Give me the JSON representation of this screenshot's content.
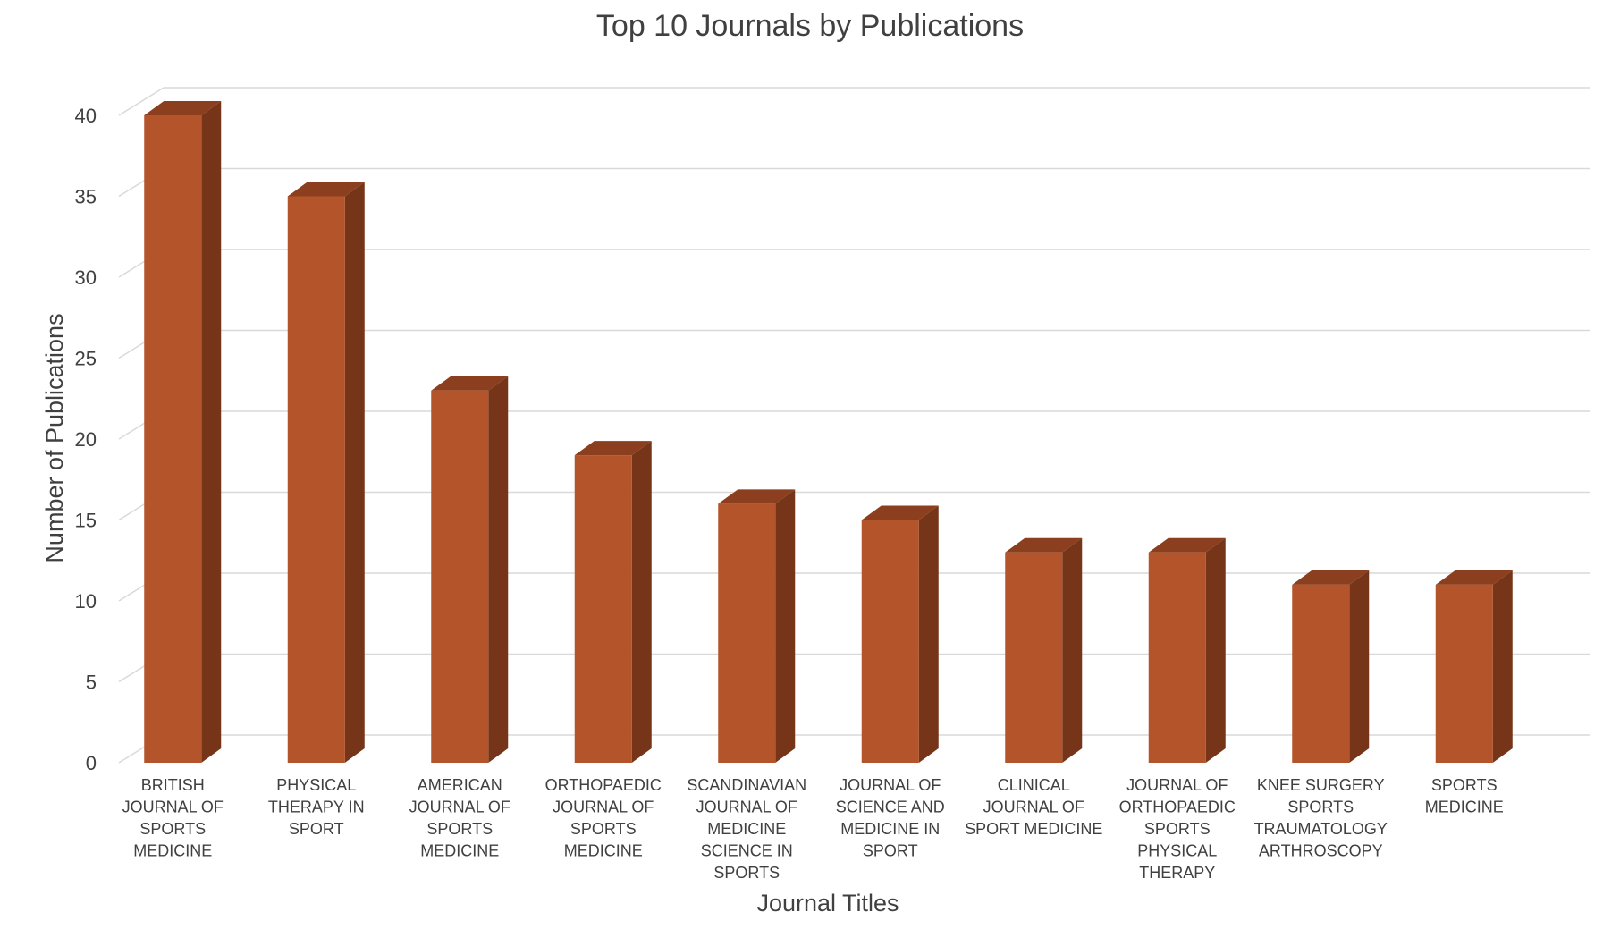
{
  "chart_data": {
    "type": "bar",
    "title": "Top 10 Journals by Publications",
    "xlabel": "Journal Titles",
    "ylabel": "Number of Publications",
    "ylim": [
      0,
      40
    ],
    "yticks": [
      0,
      5,
      10,
      15,
      20,
      25,
      30,
      35,
      40
    ],
    "grid": true,
    "style": "3d",
    "colors": {
      "bar_front": "#b3542a",
      "bar_side": "#763519",
      "bar_top": "#8c3f1e",
      "grid": "#d9d9d9",
      "text": "#404040"
    },
    "categories": [
      "BRITISH JOURNAL OF SPORTS MEDICINE",
      "PHYSICAL THERAPY IN SPORT",
      "AMERICAN JOURNAL OF SPORTS MEDICINE",
      "ORTHOPAEDIC JOURNAL OF SPORTS MEDICINE",
      "SCANDINAVIAN JOURNAL OF MEDICINE SCIENCE IN SPORTS",
      "JOURNAL OF SCIENCE AND MEDICINE IN SPORT",
      "CLINICAL JOURNAL OF SPORT MEDICINE",
      "JOURNAL OF ORTHOPAEDIC SPORTS PHYSICAL THERAPY",
      "KNEE SURGERY SPORTS TRAUMATOLOGY ARTHROSCOPY",
      "SPORTS MEDICINE"
    ],
    "category_lines": [
      [
        "BRITISH",
        "JOURNAL OF",
        "SPORTS",
        "MEDICINE"
      ],
      [
        "PHYSICAL",
        "THERAPY IN",
        "SPORT"
      ],
      [
        "AMERICAN",
        "JOURNAL OF",
        "SPORTS",
        "MEDICINE"
      ],
      [
        "ORTHOPAEDIC",
        "JOURNAL OF",
        "SPORTS",
        "MEDICINE"
      ],
      [
        "SCANDINAVIAN",
        "JOURNAL OF",
        "MEDICINE",
        "SCIENCE IN",
        "SPORTS"
      ],
      [
        "JOURNAL OF",
        "SCIENCE AND",
        "MEDICINE IN",
        "SPORT"
      ],
      [
        "CLINICAL",
        "JOURNAL OF",
        "SPORT MEDICINE"
      ],
      [
        "JOURNAL OF",
        "ORTHOPAEDIC",
        "SPORTS",
        "PHYSICAL",
        "THERAPY"
      ],
      [
        "KNEE SURGERY",
        "SPORTS",
        "TRAUMATOLOGY",
        "ARTHROSCOPY"
      ],
      [
        "SPORTS",
        "MEDICINE"
      ]
    ],
    "values": [
      40,
      35,
      23,
      19,
      16,
      15,
      13,
      13,
      11,
      11
    ]
  }
}
